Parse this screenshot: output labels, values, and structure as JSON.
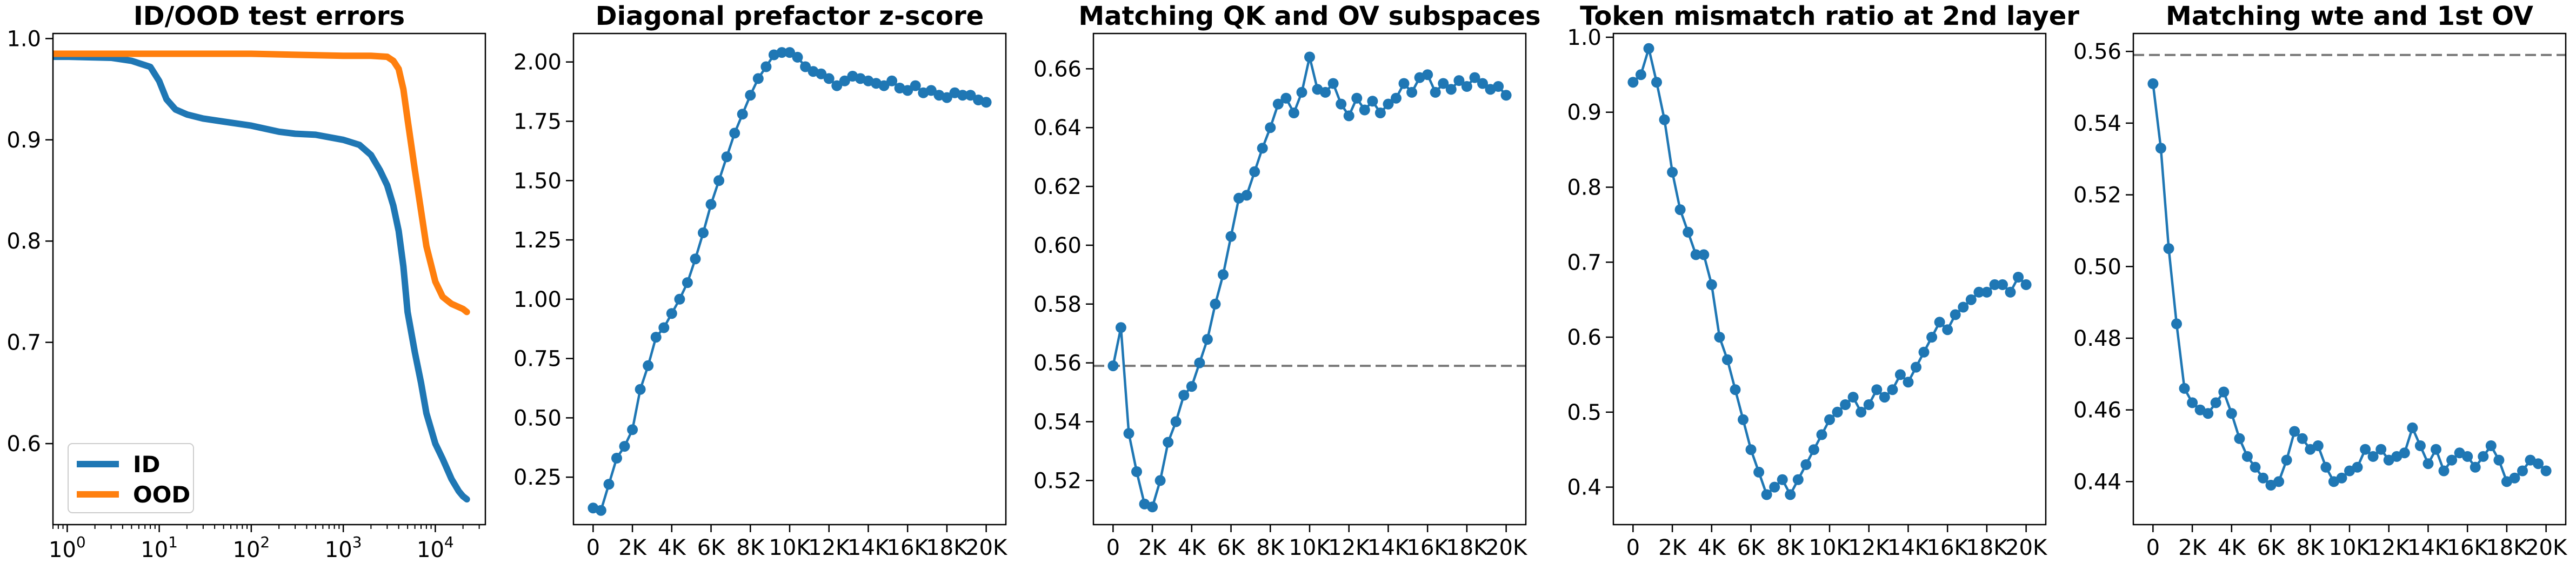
{
  "colors": {
    "blue": "#1f77b4",
    "orange": "#ff7f0e",
    "reference_line": "#777777",
    "axes": "#000000"
  },
  "chart_data": [
    {
      "type": "line",
      "title": "ID/OOD test errors",
      "x_scale": "log",
      "xlim": [
        0.7,
        35000
      ],
      "ylim": [
        0.52,
        1.005
      ],
      "xticks": [
        1,
        10,
        100,
        1000,
        10000
      ],
      "xtick_labels": [
        {
          "base": "10",
          "exp": "0"
        },
        {
          "base": "10",
          "exp": "1"
        },
        {
          "base": "10",
          "exp": "2"
        },
        {
          "base": "10",
          "exp": "3"
        },
        {
          "base": "10",
          "exp": "4"
        }
      ],
      "yticks": [
        0.6,
        0.7,
        0.8,
        0.9,
        1.0
      ],
      "ytick_labels": [
        "0.6",
        "0.7",
        "0.8",
        "0.9",
        "1.0"
      ],
      "legend": {
        "placement": "lower-left",
        "entries": [
          "ID",
          "OOD"
        ]
      },
      "series": [
        {
          "name": "ID",
          "color": "#1f77b4",
          "x": [
            0.7,
            1,
            3,
            5,
            8,
            10,
            12,
            15,
            20,
            30,
            50,
            100,
            200,
            300,
            500,
            1000,
            1500,
            2000,
            2500,
            3000,
            3500,
            4000,
            4500,
            5000,
            6000,
            7000,
            8000,
            10000,
            12000,
            15000,
            18000,
            20000,
            22000
          ],
          "y": [
            0.982,
            0.982,
            0.981,
            0.978,
            0.972,
            0.958,
            0.94,
            0.93,
            0.925,
            0.921,
            0.918,
            0.914,
            0.908,
            0.906,
            0.905,
            0.9,
            0.895,
            0.885,
            0.87,
            0.855,
            0.835,
            0.81,
            0.775,
            0.73,
            0.69,
            0.66,
            0.63,
            0.6,
            0.585,
            0.565,
            0.553,
            0.548,
            0.545
          ]
        },
        {
          "name": "OOD",
          "color": "#ff7f0e",
          "x": [
            0.7,
            1,
            3,
            10,
            30,
            100,
            300,
            1000,
            2000,
            3000,
            3500,
            4000,
            4500,
            5000,
            6000,
            7000,
            8000,
            10000,
            12000,
            15000,
            20000,
            22000
          ],
          "y": [
            0.985,
            0.985,
            0.985,
            0.985,
            0.985,
            0.985,
            0.984,
            0.983,
            0.983,
            0.982,
            0.978,
            0.97,
            0.95,
            0.92,
            0.87,
            0.83,
            0.795,
            0.76,
            0.745,
            0.738,
            0.733,
            0.73
          ]
        }
      ]
    },
    {
      "type": "line",
      "title": "Diagonal prefactor z-score",
      "xlim": [
        -1000,
        21000
      ],
      "ylim": [
        0.05,
        2.12
      ],
      "xticks": [
        0,
        2000,
        4000,
        6000,
        8000,
        10000,
        12000,
        14000,
        16000,
        18000,
        20000
      ],
      "xtick_labels": [
        "0",
        "2K",
        "4K",
        "6K",
        "8K",
        "10K",
        "12K",
        "14K",
        "16K",
        "18K",
        "20K"
      ],
      "yticks": [
        0.25,
        0.5,
        0.75,
        1.0,
        1.25,
        1.5,
        1.75,
        2.0
      ],
      "ytick_labels": [
        "0.25",
        "0.50",
        "0.75",
        "1.00",
        "1.25",
        "1.50",
        "1.75",
        "2.00"
      ],
      "series": [
        {
          "color": "#1f77b4",
          "x": [
            0,
            400,
            800,
            1200,
            1600,
            2000,
            2400,
            2800,
            3200,
            3600,
            4000,
            4400,
            4800,
            5200,
            5600,
            6000,
            6400,
            6800,
            7200,
            7600,
            8000,
            8400,
            8800,
            9200,
            9600,
            10000,
            10400,
            10800,
            11200,
            11600,
            12000,
            12400,
            12800,
            13200,
            13600,
            14000,
            14400,
            14800,
            15200,
            15600,
            16000,
            16400,
            16800,
            17200,
            17600,
            18000,
            18400,
            18800,
            19200,
            19600,
            20000
          ],
          "y": [
            0.12,
            0.11,
            0.22,
            0.33,
            0.38,
            0.45,
            0.62,
            0.72,
            0.84,
            0.88,
            0.94,
            1.0,
            1.07,
            1.17,
            1.28,
            1.4,
            1.5,
            1.6,
            1.7,
            1.78,
            1.86,
            1.93,
            1.98,
            2.03,
            2.04,
            2.04,
            2.02,
            1.98,
            1.96,
            1.95,
            1.93,
            1.9,
            1.92,
            1.94,
            1.93,
            1.92,
            1.91,
            1.9,
            1.92,
            1.89,
            1.88,
            1.9,
            1.87,
            1.88,
            1.86,
            1.85,
            1.87,
            1.86,
            1.86,
            1.84,
            1.83
          ]
        }
      ]
    },
    {
      "type": "line",
      "title": "Matching QK and OV subspaces",
      "xlim": [
        -1000,
        21000
      ],
      "ylim": [
        0.505,
        0.672
      ],
      "reference_line": 0.559,
      "xticks": [
        0,
        2000,
        4000,
        6000,
        8000,
        10000,
        12000,
        14000,
        16000,
        18000,
        20000
      ],
      "xtick_labels": [
        "0",
        "2K",
        "4K",
        "6K",
        "8K",
        "10K",
        "12K",
        "14K",
        "16K",
        "18K",
        "20K"
      ],
      "yticks": [
        0.52,
        0.54,
        0.56,
        0.58,
        0.6,
        0.62,
        0.64,
        0.66
      ],
      "ytick_labels": [
        "0.52",
        "0.54",
        "0.56",
        "0.58",
        "0.60",
        "0.62",
        "0.64",
        "0.66"
      ],
      "series": [
        {
          "color": "#1f77b4",
          "x": [
            0,
            400,
            800,
            1200,
            1600,
            2000,
            2400,
            2800,
            3200,
            3600,
            4000,
            4400,
            4800,
            5200,
            5600,
            6000,
            6400,
            6800,
            7200,
            7600,
            8000,
            8400,
            8800,
            9200,
            9600,
            10000,
            10400,
            10800,
            11200,
            11600,
            12000,
            12400,
            12800,
            13200,
            13600,
            14000,
            14400,
            14800,
            15200,
            15600,
            16000,
            16400,
            16800,
            17200,
            17600,
            18000,
            18400,
            18800,
            19200,
            19600,
            20000
          ],
          "y": [
            0.559,
            0.572,
            0.536,
            0.523,
            0.512,
            0.511,
            0.52,
            0.533,
            0.54,
            0.549,
            0.552,
            0.56,
            0.568,
            0.58,
            0.59,
            0.603,
            0.616,
            0.617,
            0.625,
            0.633,
            0.64,
            0.648,
            0.65,
            0.645,
            0.652,
            0.664,
            0.653,
            0.652,
            0.655,
            0.648,
            0.644,
            0.65,
            0.646,
            0.649,
            0.645,
            0.648,
            0.65,
            0.655,
            0.652,
            0.657,
            0.658,
            0.652,
            0.655,
            0.653,
            0.656,
            0.654,
            0.657,
            0.655,
            0.653,
            0.654,
            0.651
          ]
        }
      ]
    },
    {
      "type": "line",
      "title": "Token mismatch ratio at 2nd layer",
      "xlim": [
        -1000,
        21000
      ],
      "ylim": [
        0.35,
        1.005
      ],
      "xticks": [
        0,
        2000,
        4000,
        6000,
        8000,
        10000,
        12000,
        14000,
        16000,
        18000,
        20000
      ],
      "xtick_labels": [
        "0",
        "2K",
        "4K",
        "6K",
        "8K",
        "10K",
        "12K",
        "14K",
        "16K",
        "18K",
        "20K"
      ],
      "yticks": [
        0.4,
        0.5,
        0.6,
        0.7,
        0.8,
        0.9,
        1.0
      ],
      "ytick_labels": [
        "0.4",
        "0.5",
        "0.6",
        "0.7",
        "0.8",
        "0.9",
        "1.0"
      ],
      "series": [
        {
          "color": "#1f77b4",
          "x": [
            0,
            400,
            800,
            1200,
            1600,
            2000,
            2400,
            2800,
            3200,
            3600,
            4000,
            4400,
            4800,
            5200,
            5600,
            6000,
            6400,
            6800,
            7200,
            7600,
            8000,
            8400,
            8800,
            9200,
            9600,
            10000,
            10400,
            10800,
            11200,
            11600,
            12000,
            12400,
            12800,
            13200,
            13600,
            14000,
            14400,
            14800,
            15200,
            15600,
            16000,
            16400,
            16800,
            17200,
            17600,
            18000,
            18400,
            18800,
            19200,
            19600,
            20000
          ],
          "y": [
            0.94,
            0.95,
            0.985,
            0.94,
            0.89,
            0.82,
            0.77,
            0.74,
            0.71,
            0.71,
            0.67,
            0.6,
            0.57,
            0.53,
            0.49,
            0.45,
            0.42,
            0.39,
            0.4,
            0.41,
            0.39,
            0.41,
            0.43,
            0.45,
            0.47,
            0.49,
            0.5,
            0.51,
            0.52,
            0.5,
            0.51,
            0.53,
            0.52,
            0.53,
            0.55,
            0.54,
            0.56,
            0.58,
            0.6,
            0.62,
            0.61,
            0.63,
            0.64,
            0.65,
            0.66,
            0.66,
            0.67,
            0.67,
            0.66,
            0.68,
            0.67
          ]
        }
      ]
    },
    {
      "type": "line",
      "title": "Matching wte and 1st OV",
      "xlim": [
        -1000,
        21000
      ],
      "ylim": [
        0.428,
        0.565
      ],
      "reference_line": 0.559,
      "xticks": [
        0,
        2000,
        4000,
        6000,
        8000,
        10000,
        12000,
        14000,
        16000,
        18000,
        20000
      ],
      "xtick_labels": [
        "0",
        "2K",
        "4K",
        "6K",
        "8K",
        "10K",
        "12K",
        "14K",
        "16K",
        "18K",
        "20K"
      ],
      "yticks": [
        0.44,
        0.46,
        0.48,
        0.5,
        0.52,
        0.54,
        0.56
      ],
      "ytick_labels": [
        "0.44",
        "0.46",
        "0.48",
        "0.50",
        "0.52",
        "0.54",
        "0.56"
      ],
      "series": [
        {
          "color": "#1f77b4",
          "x": [
            0,
            400,
            800,
            1200,
            1600,
            2000,
            2400,
            2800,
            3200,
            3600,
            4000,
            4400,
            4800,
            5200,
            5600,
            6000,
            6400,
            6800,
            7200,
            7600,
            8000,
            8400,
            8800,
            9200,
            9600,
            10000,
            10400,
            10800,
            11200,
            11600,
            12000,
            12400,
            12800,
            13200,
            13600,
            14000,
            14400,
            14800,
            15200,
            15600,
            16000,
            16400,
            16800,
            17200,
            17600,
            18000,
            18400,
            18800,
            19200,
            19600,
            20000
          ],
          "y": [
            0.551,
            0.533,
            0.505,
            0.484,
            0.466,
            0.462,
            0.46,
            0.459,
            0.462,
            0.465,
            0.459,
            0.452,
            0.447,
            0.444,
            0.441,
            0.439,
            0.44,
            0.446,
            0.454,
            0.452,
            0.449,
            0.45,
            0.444,
            0.44,
            0.441,
            0.443,
            0.444,
            0.449,
            0.447,
            0.449,
            0.446,
            0.447,
            0.448,
            0.455,
            0.45,
            0.445,
            0.449,
            0.443,
            0.446,
            0.448,
            0.447,
            0.444,
            0.447,
            0.45,
            0.446,
            0.44,
            0.441,
            0.443,
            0.446,
            0.445,
            0.443
          ]
        }
      ]
    }
  ]
}
